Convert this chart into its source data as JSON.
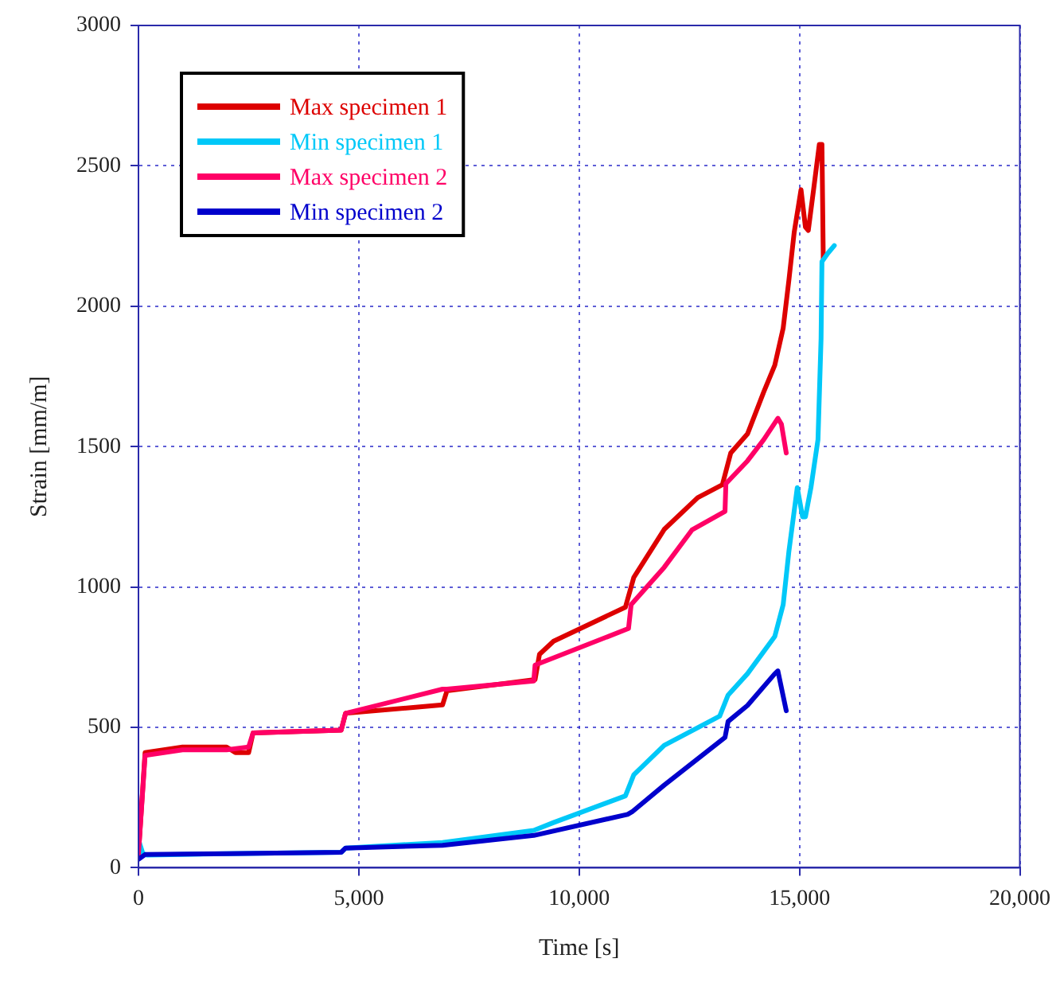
{
  "chart_data": {
    "type": "line",
    "xlabel": "Time [s]",
    "ylabel": "Strain [mm/m]",
    "xlim": [
      0,
      20000
    ],
    "xticks": [
      {
        "value": 0,
        "label": "0"
      },
      {
        "value": 5000,
        "label": "5,000"
      },
      {
        "value": 10000,
        "label": "10,000"
      },
      {
        "value": 15000,
        "label": "15,000"
      },
      {
        "value": 20000,
        "label": "20,000"
      }
    ],
    "ylim": [
      0,
      3000
    ],
    "yticks": [
      0,
      500,
      1000,
      1500,
      2000,
      2500,
      3000
    ],
    "grid": true,
    "legend": "top left",
    "marker": "none",
    "line_style": "solid",
    "series": [
      {
        "name": "Max specimen 1",
        "color": "#dd0000",
        "x": [
          0,
          150,
          1000,
          2000,
          2200,
          2500,
          2600,
          4600,
          4700,
          6900,
          7000,
          9000,
          9100,
          9420,
          11050,
          11240,
          11930,
          12690,
          13250,
          13440,
          13820,
          14190,
          14440,
          14630,
          14760,
          14880,
          15035,
          15135,
          15200,
          15320,
          15450,
          15510,
          15540
        ],
        "values": [
          50,
          410,
          430,
          430,
          410,
          410,
          480,
          490,
          550,
          580,
          630,
          670,
          760,
          807,
          928,
          1034,
          1205,
          1318,
          1364,
          1477,
          1545,
          1695,
          1790,
          1922,
          2093,
          2263,
          2415,
          2282,
          2270,
          2415,
          2576,
          2576,
          2169
        ]
      },
      {
        "name": "Min specimen 1",
        "color": "#00c8f8",
        "x": [
          0,
          100,
          200,
          2000,
          4600,
          4700,
          6900,
          8970,
          9420,
          11050,
          11240,
          11930,
          13190,
          13380,
          13820,
          14440,
          14630,
          14760,
          14950,
          15070,
          15135,
          15260,
          15420,
          15490,
          15510,
          15640,
          15790
        ],
        "values": [
          100,
          50,
          45,
          50,
          55,
          70,
          90,
          133,
          161,
          256,
          331,
          436,
          540,
          615,
          691,
          824,
          937,
          1127,
          1354,
          1250,
          1250,
          1354,
          1525,
          1885,
          2159,
          2188,
          2216
        ]
      },
      {
        "name": "Max specimen 2",
        "color": "#ff0066",
        "x": [
          0,
          150,
          1000,
          2000,
          2500,
          2600,
          4600,
          4700,
          6900,
          7000,
          8970,
          9000,
          11120,
          11180,
          11930,
          12560,
          13310,
          13330,
          13820,
          14190,
          14510,
          14590,
          14700
        ],
        "values": [
          50,
          400,
          420,
          420,
          430,
          480,
          490,
          550,
          636,
          636,
          665,
          722,
          852,
          937,
          1070,
          1203,
          1269,
          1368,
          1449,
          1525,
          1601,
          1580,
          1477
        ]
      },
      {
        "name": "Min specimen 2",
        "color": "#0000cc",
        "x": [
          0,
          150,
          2000,
          4600,
          4700,
          6900,
          8970,
          11100,
          11200,
          11930,
          13310,
          13380,
          13820,
          14440,
          14510,
          14700
        ],
        "values": [
          30,
          47,
          50,
          55,
          70,
          80,
          115,
          190,
          199,
          294,
          464,
          521,
          578,
          691,
          701,
          559
        ]
      }
    ]
  }
}
